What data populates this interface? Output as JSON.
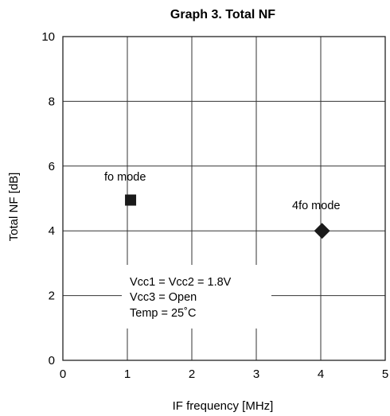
{
  "chart_data": {
    "type": "scatter",
    "title": "Graph 3. Total NF",
    "xlabel": "IF frequency [MHz]",
    "ylabel": "Total NF [dB]",
    "xlim": [
      0,
      5
    ],
    "ylim": [
      0,
      10
    ],
    "xticks": [
      0,
      1,
      2,
      3,
      4,
      5
    ],
    "yticks": [
      0,
      2,
      4,
      6,
      8,
      10
    ],
    "grid": true,
    "series": [
      {
        "name": "fo mode",
        "x": [
          1.05
        ],
        "y": [
          4.95
        ],
        "marker": "square",
        "color": "#1a1a1a"
      },
      {
        "name": "4fo mode",
        "x": [
          4.02
        ],
        "y": [
          4.0
        ],
        "marker": "diamond",
        "color": "#1a1a1a"
      }
    ],
    "conditions": [
      "Vcc1 = Vcc2 = 1.8V",
      "Vcc3 = Open",
      "Temp = 25˚C"
    ]
  }
}
